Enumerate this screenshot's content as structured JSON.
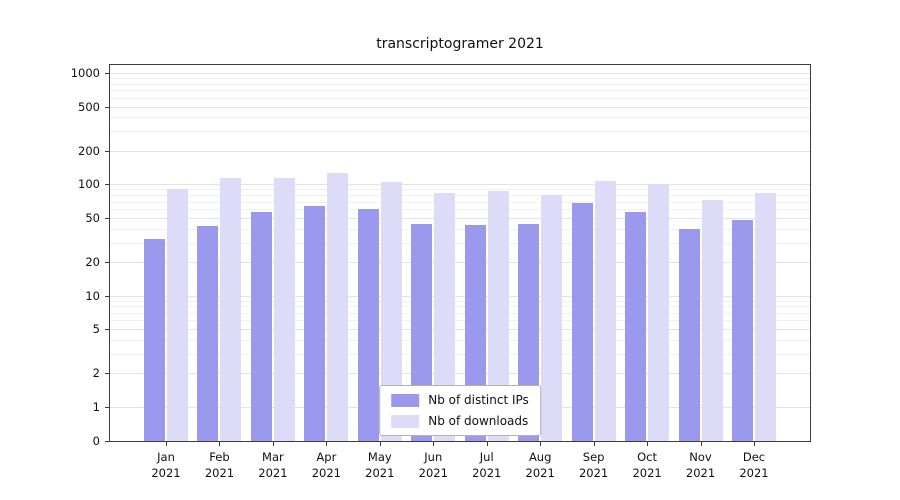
{
  "title": "transcriptogramer 2021",
  "chart_data": {
    "type": "bar",
    "title": "transcriptogramer 2021",
    "categories": [
      "Jan 2021",
      "Feb 2021",
      "Mar 2021",
      "Apr 2021",
      "May 2021",
      "Jun 2021",
      "Jul 2021",
      "Aug 2021",
      "Sep 2021",
      "Oct 2021",
      "Nov 2021",
      "Dec 2021"
    ],
    "series": [
      {
        "name": "Nb of distinct IPs",
        "color": "#9a99ee",
        "values": [
          32,
          42,
          57,
          64,
          60,
          44,
          43,
          44,
          68,
          56,
          40,
          48
        ]
      },
      {
        "name": "Nb of downloads",
        "color": "#dcdbf8",
        "values": [
          90,
          115,
          115,
          127,
          105,
          83,
          88,
          80,
          108,
          100,
          72,
          83
        ]
      }
    ],
    "yscale": "symlog",
    "yticks": [
      0,
      1,
      2,
      5,
      10,
      20,
      50,
      100,
      200,
      500,
      1000
    ],
    "ylim": [
      0,
      1200
    ],
    "grid": true,
    "legend_position": "lower center",
    "xlabel": "",
    "ylabel": ""
  }
}
